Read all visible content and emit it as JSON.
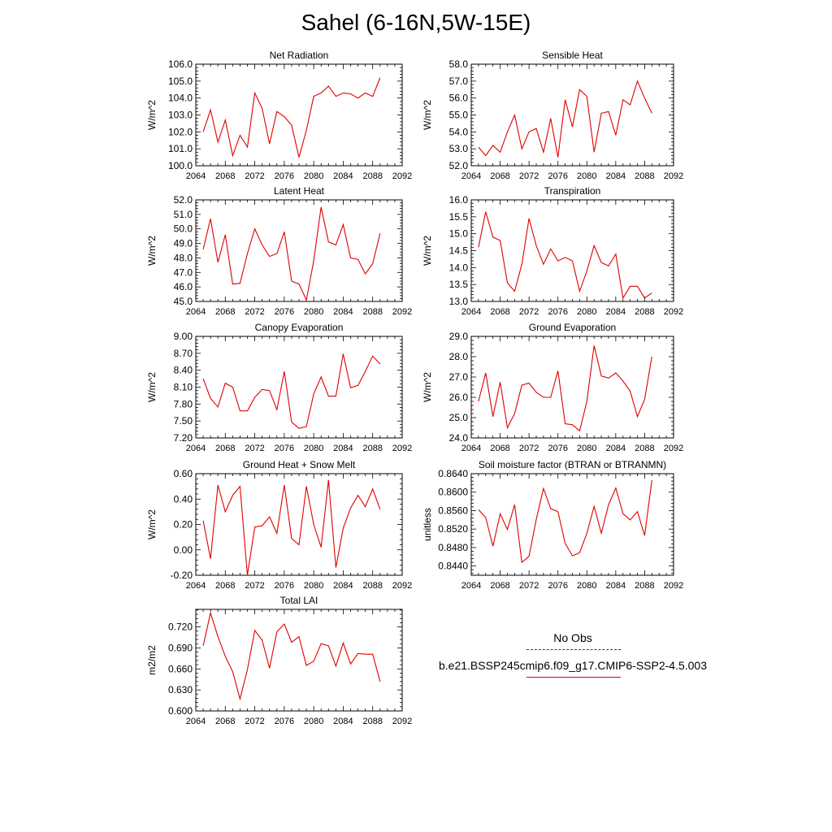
{
  "page_title": "Sahel (6-16N,5W-15E)",
  "legend": {
    "items": [
      {
        "label": "No Obs",
        "style": "dashed",
        "color": "#3030a0"
      },
      {
        "label": "b.e21.BSSP245cmip6.f09_g17.CMIP6-SSP2-4.5.003",
        "style": "solid",
        "color": "#e00000"
      }
    ]
  },
  "chart_data": [
    {
      "type": "line",
      "title": "Net Radiation",
      "ylabel": "W/m^2",
      "xlim": [
        2064,
        2092
      ],
      "xticks": [
        2064,
        2068,
        2072,
        2076,
        2080,
        2084,
        2088,
        2092
      ],
      "xtick_labels": [
        "2064",
        "2068",
        "2072",
        "2076",
        "2080",
        "2084",
        "2088",
        "2092"
      ],
      "ylim": [
        100.0,
        106.0
      ],
      "yticks": [
        100.0,
        101.0,
        102.0,
        103.0,
        104.0,
        105.0,
        106.0
      ],
      "ytick_labels": [
        "100.0",
        "101.0",
        "102.0",
        "103.0",
        "104.0",
        "105.0",
        "106.0"
      ],
      "color": "#e00000",
      "x": [
        2065,
        2066,
        2067,
        2068,
        2069,
        2070,
        2071,
        2072,
        2073,
        2074,
        2075,
        2076,
        2077,
        2078,
        2079,
        2080,
        2081,
        2082,
        2083,
        2084,
        2085,
        2086,
        2087,
        2088,
        2089
      ],
      "y": [
        102.0,
        103.3,
        101.4,
        102.7,
        100.6,
        101.8,
        101.1,
        104.3,
        103.4,
        101.3,
        103.2,
        102.9,
        102.4,
        100.5,
        102.1,
        104.1,
        104.3,
        104.7,
        104.1,
        104.3,
        104.25,
        104.0,
        104.3,
        104.1,
        105.2
      ]
    },
    {
      "type": "line",
      "title": "Sensible Heat",
      "ylabel": "W/m^2",
      "xlim": [
        2064,
        2092
      ],
      "xticks": [
        2064,
        2068,
        2072,
        2076,
        2080,
        2084,
        2088,
        2092
      ],
      "xtick_labels": [
        "2064",
        "2068",
        "2072",
        "2076",
        "2080",
        "2084",
        "2088",
        "2092"
      ],
      "ylim": [
        52.0,
        58.0
      ],
      "yticks": [
        52.0,
        53.0,
        54.0,
        55.0,
        56.0,
        57.0,
        58.0
      ],
      "ytick_labels": [
        "52.0",
        "53.0",
        "54.0",
        "55.0",
        "56.0",
        "57.0",
        "58.0"
      ],
      "color": "#e00000",
      "x": [
        2065,
        2066,
        2067,
        2068,
        2069,
        2070,
        2071,
        2072,
        2073,
        2074,
        2075,
        2076,
        2077,
        2078,
        2079,
        2080,
        2081,
        2082,
        2083,
        2084,
        2085,
        2086,
        2087,
        2088,
        2089
      ],
      "y": [
        53.1,
        52.6,
        53.2,
        52.8,
        54.0,
        55.0,
        53.0,
        54.0,
        54.2,
        52.8,
        54.8,
        52.5,
        55.9,
        54.3,
        56.5,
        56.1,
        52.8,
        55.1,
        55.2,
        53.8,
        55.9,
        55.6,
        57.0,
        56.0,
        55.1
      ]
    },
    {
      "type": "line",
      "title": "Latent Heat",
      "ylabel": "W/m^2",
      "xlim": [
        2064,
        2092
      ],
      "xticks": [
        2064,
        2068,
        2072,
        2076,
        2080,
        2084,
        2088,
        2092
      ],
      "xtick_labels": [
        "2064",
        "2068",
        "2072",
        "2076",
        "2080",
        "2084",
        "2088",
        "2092"
      ],
      "ylim": [
        45.0,
        52.0
      ],
      "yticks": [
        45.0,
        46.0,
        47.0,
        48.0,
        49.0,
        50.0,
        51.0,
        52.0
      ],
      "ytick_labels": [
        "45.0",
        "46.0",
        "47.0",
        "48.0",
        "49.0",
        "50.0",
        "51.0",
        "52.0"
      ],
      "color": "#e00000",
      "x": [
        2065,
        2066,
        2067,
        2068,
        2069,
        2070,
        2071,
        2072,
        2073,
        2074,
        2075,
        2076,
        2077,
        2078,
        2079,
        2080,
        2081,
        2082,
        2083,
        2084,
        2085,
        2086,
        2087,
        2088,
        2089
      ],
      "y": [
        48.6,
        50.7,
        47.7,
        49.6,
        46.2,
        46.25,
        48.3,
        50.0,
        48.9,
        48.1,
        48.3,
        49.8,
        46.4,
        46.2,
        45.1,
        47.8,
        51.5,
        49.1,
        48.9,
        50.3,
        48.0,
        47.9,
        46.9,
        47.6,
        49.7
      ]
    },
    {
      "type": "line",
      "title": "Transpiration",
      "ylabel": "W/m^2",
      "xlim": [
        2064,
        2092
      ],
      "xticks": [
        2064,
        2068,
        2072,
        2076,
        2080,
        2084,
        2088,
        2092
      ],
      "xtick_labels": [
        "2064",
        "2068",
        "2072",
        "2076",
        "2080",
        "2084",
        "2088",
        "2092"
      ],
      "ylim": [
        13.0,
        16.0
      ],
      "yticks": [
        13.0,
        13.5,
        14.0,
        14.5,
        15.0,
        15.5,
        16.0
      ],
      "ytick_labels": [
        "13.0",
        "13.5",
        "14.0",
        "14.5",
        "15.0",
        "15.5",
        "16.0"
      ],
      "color": "#e00000",
      "x": [
        2065,
        2066,
        2067,
        2068,
        2069,
        2070,
        2071,
        2072,
        2073,
        2074,
        2075,
        2076,
        2077,
        2078,
        2079,
        2080,
        2081,
        2082,
        2083,
        2084,
        2085,
        2086,
        2087,
        2088,
        2089
      ],
      "y": [
        14.6,
        15.65,
        14.9,
        14.8,
        13.55,
        13.3,
        14.1,
        15.45,
        14.65,
        14.1,
        14.55,
        14.2,
        14.3,
        14.2,
        13.3,
        13.9,
        14.65,
        14.15,
        14.05,
        14.4,
        13.1,
        13.45,
        13.45,
        13.1,
        13.25
      ]
    },
    {
      "type": "line",
      "title": "Canopy Evaporation",
      "ylabel": "W/m^2",
      "xlim": [
        2064,
        2092
      ],
      "xticks": [
        2064,
        2068,
        2072,
        2076,
        2080,
        2084,
        2088,
        2092
      ],
      "xtick_labels": [
        "2064",
        "2068",
        "2072",
        "2076",
        "2080",
        "2084",
        "2088",
        "2092"
      ],
      "ylim": [
        7.2,
        9.0
      ],
      "yticks": [
        7.2,
        7.5,
        7.8,
        8.1,
        8.4,
        8.7,
        9.0
      ],
      "ytick_labels": [
        "7.20",
        "7.50",
        "7.80",
        "8.10",
        "8.40",
        "8.70",
        "9.00"
      ],
      "color": "#e00000",
      "x": [
        2065,
        2066,
        2067,
        2068,
        2069,
        2070,
        2071,
        2072,
        2073,
        2074,
        2075,
        2076,
        2077,
        2078,
        2079,
        2080,
        2081,
        2082,
        2083,
        2084,
        2085,
        2086,
        2087,
        2088,
        2089
      ],
      "y": [
        8.25,
        7.9,
        7.75,
        8.17,
        8.1,
        7.68,
        7.68,
        7.92,
        8.06,
        8.04,
        7.7,
        8.38,
        7.48,
        7.37,
        7.4,
        7.98,
        8.28,
        7.94,
        7.94,
        8.69,
        8.09,
        8.13,
        8.38,
        8.65,
        8.51
      ]
    },
    {
      "type": "line",
      "title": "Ground Evaporation",
      "ylabel": "W/m^2",
      "xlim": [
        2064,
        2092
      ],
      "xticks": [
        2064,
        2068,
        2072,
        2076,
        2080,
        2084,
        2088,
        2092
      ],
      "xtick_labels": [
        "2064",
        "2068",
        "2072",
        "2076",
        "2080",
        "2084",
        "2088",
        "2092"
      ],
      "ylim": [
        24.0,
        29.0
      ],
      "yticks": [
        24.0,
        25.0,
        26.0,
        27.0,
        28.0,
        29.0
      ],
      "ytick_labels": [
        "24.0",
        "25.0",
        "26.0",
        "27.0",
        "28.0",
        "29.0"
      ],
      "color": "#e00000",
      "x": [
        2065,
        2066,
        2067,
        2068,
        2069,
        2070,
        2071,
        2072,
        2073,
        2074,
        2075,
        2076,
        2077,
        2078,
        2079,
        2080,
        2081,
        2082,
        2083,
        2084,
        2085,
        2086,
        2087,
        2088,
        2089
      ],
      "y": [
        25.8,
        27.2,
        25.05,
        26.75,
        24.5,
        25.2,
        26.6,
        26.7,
        26.25,
        26.0,
        26.0,
        27.3,
        24.7,
        24.65,
        24.35,
        25.8,
        28.55,
        27.05,
        26.95,
        27.2,
        26.8,
        26.3,
        25.05,
        25.9,
        28.0
      ]
    },
    {
      "type": "line",
      "title": "Ground Heat + Snow Melt",
      "ylabel": "W/m^2",
      "xlim": [
        2064,
        2092
      ],
      "xticks": [
        2064,
        2068,
        2072,
        2076,
        2080,
        2084,
        2088,
        2092
      ],
      "xtick_labels": [
        "2064",
        "2068",
        "2072",
        "2076",
        "2080",
        "2084",
        "2088",
        "2092"
      ],
      "ylim": [
        -0.2,
        0.6
      ],
      "yticks": [
        -0.2,
        0.0,
        0.2,
        0.4,
        0.6
      ],
      "ytick_labels": [
        "-0.20",
        "0.00",
        "0.20",
        "0.40",
        "0.60"
      ],
      "color": "#e00000",
      "x": [
        2065,
        2066,
        2067,
        2068,
        2069,
        2070,
        2071,
        2072,
        2073,
        2074,
        2075,
        2076,
        2077,
        2078,
        2079,
        2080,
        2081,
        2082,
        2083,
        2084,
        2085,
        2086,
        2087,
        2088,
        2089
      ],
      "y": [
        0.23,
        -0.07,
        0.51,
        0.3,
        0.43,
        0.5,
        -0.2,
        0.18,
        0.19,
        0.26,
        0.13,
        0.51,
        0.09,
        0.04,
        0.5,
        0.2,
        0.02,
        0.55,
        -0.14,
        0.17,
        0.33,
        0.43,
        0.34,
        0.48,
        0.32
      ]
    },
    {
      "type": "line",
      "title": "Soil moisture factor (BTRAN or BTRANMN)",
      "ylabel": "unitless",
      "xlim": [
        2064,
        2092
      ],
      "xticks": [
        2064,
        2068,
        2072,
        2076,
        2080,
        2084,
        2088,
        2092
      ],
      "xtick_labels": [
        "2064",
        "2068",
        "2072",
        "2076",
        "2080",
        "2084",
        "2088",
        "2092"
      ],
      "ylim": [
        0.842,
        0.864
      ],
      "yticks": [
        0.844,
        0.848,
        0.852,
        0.856,
        0.86,
        0.864
      ],
      "ytick_labels": [
        "0.8440",
        "0.8480",
        "0.8520",
        "0.8560",
        "0.8600",
        "0.8640"
      ],
      "color": "#e00000",
      "x": [
        2065,
        2066,
        2067,
        2068,
        2069,
        2070,
        2071,
        2072,
        2073,
        2074,
        2075,
        2076,
        2077,
        2078,
        2079,
        2080,
        2081,
        2082,
        2083,
        2084,
        2085,
        2086,
        2087,
        2088,
        2089
      ],
      "y": [
        0.8562,
        0.8545,
        0.8483,
        0.8553,
        0.8519,
        0.8573,
        0.8448,
        0.8461,
        0.8541,
        0.8608,
        0.8564,
        0.8558,
        0.8489,
        0.8462,
        0.8469,
        0.8511,
        0.8569,
        0.8511,
        0.8573,
        0.8609,
        0.8553,
        0.854,
        0.8558,
        0.8506,
        0.8626
      ]
    },
    {
      "type": "line",
      "title": "Total LAI",
      "ylabel": "m2/m2",
      "xlim": [
        2064,
        2092
      ],
      "xticks": [
        2064,
        2068,
        2072,
        2076,
        2080,
        2084,
        2088,
        2092
      ],
      "xtick_labels": [
        "2064",
        "2068",
        "2072",
        "2076",
        "2080",
        "2084",
        "2088",
        "2092"
      ],
      "ylim": [
        0.6,
        0.745
      ],
      "yticks": [
        0.6,
        0.63,
        0.66,
        0.69,
        0.72
      ],
      "ytick_labels": [
        "0.600",
        "0.630",
        "0.660",
        "0.690",
        "0.720"
      ],
      "color": "#e00000",
      "x": [
        2065,
        2066,
        2067,
        2068,
        2069,
        2070,
        2071,
        2072,
        2073,
        2074,
        2075,
        2076,
        2077,
        2078,
        2079,
        2080,
        2081,
        2082,
        2083,
        2084,
        2085,
        2086,
        2087,
        2088,
        2089
      ],
      "y": [
        0.693,
        0.74,
        0.706,
        0.678,
        0.656,
        0.617,
        0.659,
        0.715,
        0.701,
        0.661,
        0.713,
        0.724,
        0.698,
        0.706,
        0.665,
        0.671,
        0.696,
        0.693,
        0.664,
        0.697,
        0.667,
        0.682,
        0.681,
        0.681,
        0.642
      ]
    }
  ]
}
